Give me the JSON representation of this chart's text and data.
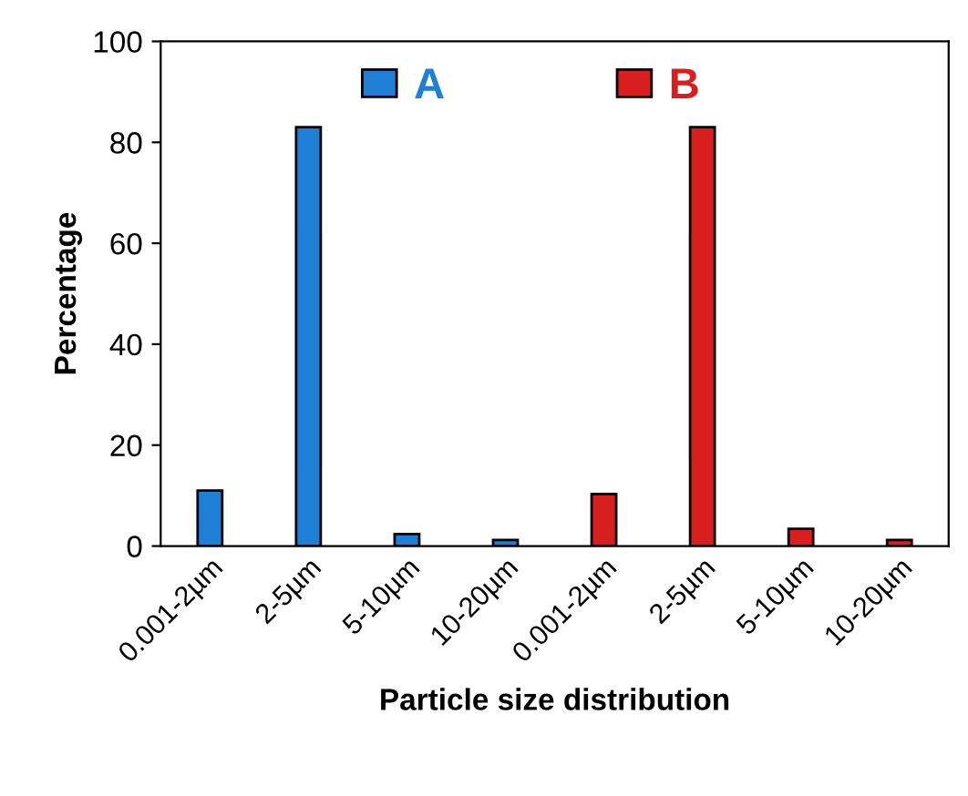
{
  "chart_data": {
    "type": "bar",
    "xlabel": "Particle size distribution",
    "ylabel": "Percentage",
    "categories": [
      "0.001-2µm",
      "2-5µm",
      "5-10µm",
      "10-20µm",
      "0.001-2µm",
      "2-5µm",
      "5-10µm",
      "10-20µm"
    ],
    "series": [
      {
        "name": "A",
        "color": "#1f7fd6",
        "values": [
          11,
          83,
          2.4,
          1.2,
          null,
          null,
          null,
          null
        ]
      },
      {
        "name": "B",
        "color": "#d81e1e",
        "values": [
          null,
          null,
          null,
          null,
          10.3,
          83,
          3.4,
          1.2
        ]
      }
    ],
    "ylim": [
      0,
      100
    ],
    "yticks": [
      0,
      20,
      40,
      60,
      80,
      100
    ],
    "grid": false,
    "legend": "top"
  }
}
